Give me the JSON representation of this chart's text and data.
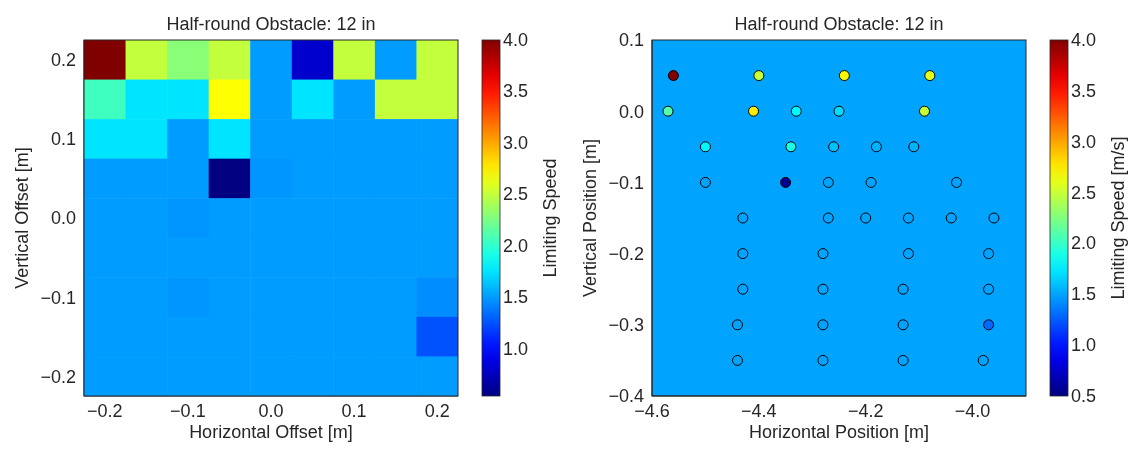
{
  "chart_data": [
    {
      "type": "heatmap",
      "title": "Half-round Obstacle: 12 in",
      "xlabel": "Horizontal Offset [m]",
      "ylabel": "Vertical Offset [m]",
      "clabel": "Limiting Speed",
      "x": [
        -0.2,
        -0.15,
        -0.1,
        -0.05,
        0.0,
        0.05,
        0.1,
        0.15,
        0.2
      ],
      "y": [
        0.2,
        0.15,
        0.1,
        0.05,
        0.0,
        -0.05,
        -0.1,
        -0.15,
        -0.2
      ],
      "cells": [
        [
          4.0,
          2.5,
          2.3,
          2.5,
          1.5,
          0.8,
          2.5,
          1.5,
          2.5
        ],
        [
          2.05,
          1.75,
          1.75,
          2.7,
          1.5,
          1.75,
          1.5,
          2.5,
          2.5
        ],
        [
          1.75,
          1.75,
          1.5,
          1.75,
          1.5,
          1.5,
          1.5,
          1.5,
          1.5
        ],
        [
          1.5,
          1.5,
          1.5,
          0.54,
          1.48,
          1.5,
          1.5,
          1.5,
          1.5
        ],
        [
          1.5,
          1.5,
          1.48,
          1.5,
          1.5,
          1.5,
          1.5,
          1.5,
          1.5
        ],
        [
          1.5,
          1.5,
          1.5,
          1.5,
          1.5,
          1.5,
          1.5,
          1.5,
          1.5
        ],
        [
          1.5,
          1.5,
          1.48,
          1.5,
          1.5,
          1.5,
          1.5,
          1.5,
          1.45
        ],
        [
          1.5,
          1.5,
          1.5,
          1.5,
          1.5,
          1.5,
          1.5,
          1.5,
          1.25
        ],
        [
          1.5,
          1.5,
          1.5,
          1.5,
          1.5,
          1.5,
          1.5,
          1.5,
          1.5
        ]
      ],
      "xlim": [
        -0.225,
        0.225
      ],
      "ylim": [
        -0.225,
        0.225
      ],
      "xticks": [
        {
          "value": -0.2,
          "label": "−0.2"
        },
        {
          "value": -0.1,
          "label": "−0.1"
        },
        {
          "value": 0.0,
          "label": "0.0"
        },
        {
          "value": 0.1,
          "label": "0.1"
        },
        {
          "value": 0.2,
          "label": "0.2"
        }
      ],
      "yticks": [
        {
          "value": -0.2,
          "label": "−0.2"
        },
        {
          "value": -0.1,
          "label": "−0.1"
        },
        {
          "value": 0.0,
          "label": "0.0"
        },
        {
          "value": 0.1,
          "label": "0.1"
        },
        {
          "value": 0.2,
          "label": "0.2"
        }
      ],
      "clim": [
        0.54,
        4.0
      ],
      "cticks": [
        {
          "value": 1.0,
          "label": "1.0"
        },
        {
          "value": 1.5,
          "label": "1.5"
        },
        {
          "value": 2.0,
          "label": "2.0"
        },
        {
          "value": 2.5,
          "label": "2.5"
        },
        {
          "value": 3.0,
          "label": "3.0"
        },
        {
          "value": 3.5,
          "label": "3.5"
        },
        {
          "value": 4.0,
          "label": "4.0"
        }
      ]
    },
    {
      "type": "scatter",
      "title": "Half-round Obstacle: 12 in",
      "xlabel": "Horizontal Position [m]",
      "ylabel": "Vertical Position [m]",
      "clabel": "Limiting Speed [m/s]",
      "marker": "circle",
      "x": [
        -4.56,
        -4.4,
        -4.24,
        -4.08,
        -4.57,
        -4.41,
        -4.33,
        -4.25,
        -4.09,
        -4.5,
        -4.34,
        -4.26,
        -4.18,
        -4.11,
        -4.5,
        -4.35,
        -4.27,
        -4.19,
        -4.03,
        -4.43,
        -4.27,
        -4.2,
        -4.12,
        -4.04,
        -3.96,
        -4.43,
        -4.28,
        -4.12,
        -3.97,
        -4.43,
        -4.28,
        -4.13,
        -3.97,
        -4.44,
        -4.28,
        -4.13,
        -3.97,
        -4.44,
        -4.28,
        -4.13,
        -3.98
      ],
      "values": [
        0.05,
        0.05,
        0.05,
        0.05,
        0.0,
        0.0,
        0.0,
        0.0,
        0.0,
        -0.05,
        -0.05,
        -0.05,
        -0.05,
        -0.05,
        -0.1,
        -0.1,
        -0.1,
        -0.1,
        -0.1,
        -0.15,
        -0.15,
        -0.15,
        -0.15,
        -0.15,
        -0.15,
        -0.2,
        -0.2,
        -0.2,
        -0.2,
        -0.25,
        -0.25,
        -0.25,
        -0.25,
        -0.3,
        -0.3,
        -0.3,
        -0.3,
        -0.35,
        -0.35,
        -0.35,
        -0.35
      ],
      "cvalues": [
        4.0,
        2.5,
        2.7,
        2.6,
        2.1,
        2.75,
        1.8,
        1.7,
        2.5,
        1.8,
        1.9,
        1.6,
        1.55,
        1.55,
        1.5,
        0.55,
        1.5,
        1.5,
        1.5,
        1.5,
        1.5,
        1.5,
        1.5,
        1.5,
        1.5,
        1.5,
        1.5,
        1.5,
        1.5,
        1.5,
        1.5,
        1.5,
        1.5,
        1.5,
        1.5,
        1.5,
        1.3,
        1.5,
        1.5,
        1.5,
        1.5
      ],
      "xlim": [
        -4.6,
        -3.9
      ],
      "ylim": [
        -0.4,
        0.1
      ],
      "xticks": [
        {
          "value": -4.6,
          "label": "−4.6"
        },
        {
          "value": -4.4,
          "label": "−4.4"
        },
        {
          "value": -4.2,
          "label": "−4.2"
        },
        {
          "value": -4.0,
          "label": "−4.0"
        }
      ],
      "yticks": [
        {
          "value": -0.4,
          "label": "−0.4"
        },
        {
          "value": -0.3,
          "label": "−0.3"
        },
        {
          "value": -0.2,
          "label": "−0.2"
        },
        {
          "value": -0.1,
          "label": "−0.1"
        },
        {
          "value": 0.0,
          "label": "0.0"
        },
        {
          "value": 0.1,
          "label": "0.1"
        }
      ],
      "clim": [
        0.5,
        4.0
      ],
      "cticks": [
        {
          "value": 0.5,
          "label": "0.5"
        },
        {
          "value": 1.0,
          "label": "1.0"
        },
        {
          "value": 1.5,
          "label": "1.5"
        },
        {
          "value": 2.0,
          "label": "2.0"
        },
        {
          "value": 2.5,
          "label": "2.5"
        },
        {
          "value": 3.0,
          "label": "3.0"
        },
        {
          "value": 3.5,
          "label": "3.5"
        },
        {
          "value": 4.0,
          "label": "4.0"
        }
      ]
    }
  ]
}
